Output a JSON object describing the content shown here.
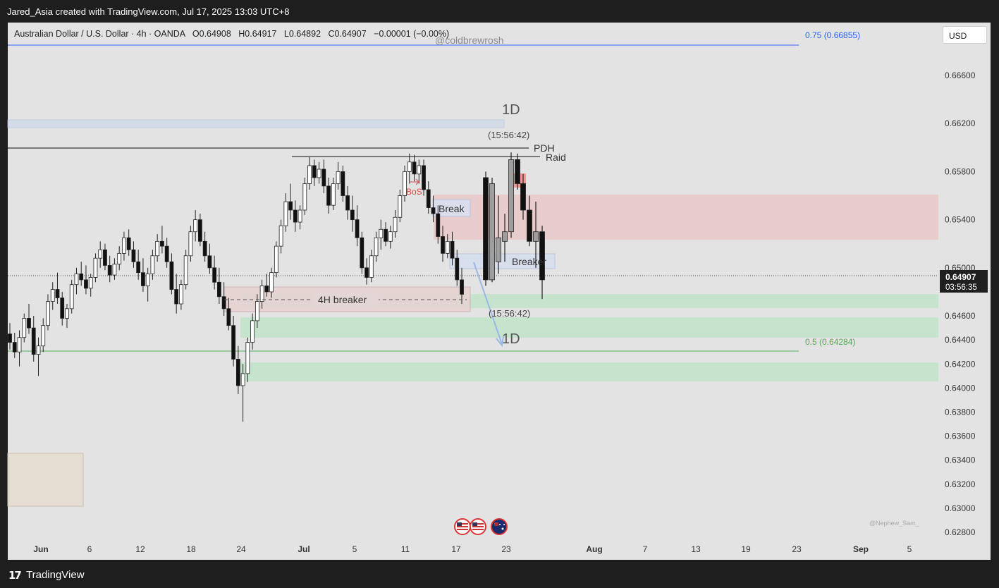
{
  "header": {
    "title": "Jared_Asia created with TradingView.com, Jul 17, 2025 13:03 UTC+8"
  },
  "legend": {
    "symbol": "Australian Dollar / U.S. Dollar · 4h · OANDA",
    "open": "O0.64908",
    "high": "H0.64917",
    "low": "L0.64892",
    "close": "C0.64907",
    "change": "−0.00001 (−0.00%)"
  },
  "currency_button": "USD",
  "footer": {
    "logo_text": "TradingView"
  },
  "colors": {
    "background": "#e3e3e3",
    "frame": "#1e1e1e",
    "blue_line": "#2962ff",
    "green_line": "#4caf50",
    "red_zone": "#f5c6c6",
    "green_zone": "#c8e6c9",
    "candle_up": "#ffffff",
    "candle_down": "#000000"
  },
  "annotations": {
    "watermark": "@coldbrewrosh",
    "tf_top": "1D",
    "tf_bottom": "1D",
    "timer_top": "(15:56:42)",
    "timer_bottom": "(15:56:42)",
    "pdh": "PDH",
    "raid": "Raid",
    "bos": "BoS",
    "break": "Break",
    "breaker": "Breaker",
    "breaker_4h": "4H breaker",
    "fib_075": "0.75 (0.66855)",
    "fib_05": "0.5 (0.64284)",
    "credit": "@Nephew_Sam_",
    "last_price": "0.64907",
    "countdown": "03:56:35"
  },
  "chart_data": {
    "type": "candlestick",
    "symbol": "AUDUSD",
    "timeframe": "4h",
    "ylim": [
      0.627,
      0.6685
    ],
    "yticks": [
      0.666,
      0.662,
      0.658,
      0.654,
      0.65,
      0.646,
      0.644,
      0.642,
      0.64,
      0.638,
      0.636,
      0.634,
      0.632,
      0.63,
      0.628
    ],
    "ytick_labels": [
      "0.66600",
      "0.66200",
      "0.65800",
      "0.65400",
      "0.65000",
      "0.64600",
      "0.64400",
      "0.64200",
      "0.64000",
      "0.63800",
      "0.63600",
      "0.63400",
      "0.63200",
      "0.63000",
      "0.62800"
    ],
    "xticks": [
      "Jun",
      "6",
      "12",
      "18",
      "24",
      "Jul",
      "5",
      "11",
      "17",
      "23",
      "Aug",
      "7",
      "13",
      "19",
      "23",
      "Sep",
      "5"
    ],
    "candles_4h": [
      [
        0.6445,
        0.6454,
        0.6432,
        0.6438
      ],
      [
        0.6438,
        0.6446,
        0.6425,
        0.643
      ],
      [
        0.643,
        0.6448,
        0.6418,
        0.6442
      ],
      [
        0.6442,
        0.6462,
        0.6438,
        0.6458
      ],
      [
        0.6458,
        0.647,
        0.6445,
        0.645
      ],
      [
        0.645,
        0.646,
        0.6422,
        0.6428
      ],
      [
        0.6428,
        0.6442,
        0.641,
        0.6435
      ],
      [
        0.6435,
        0.6458,
        0.643,
        0.6452
      ],
      [
        0.6452,
        0.6478,
        0.6448,
        0.6472
      ],
      [
        0.6472,
        0.6488,
        0.6465,
        0.6482
      ],
      [
        0.6482,
        0.6496,
        0.647,
        0.6475
      ],
      [
        0.6475,
        0.648,
        0.6452,
        0.6458
      ],
      [
        0.6458,
        0.647,
        0.645,
        0.6466
      ],
      [
        0.6466,
        0.649,
        0.6462,
        0.6486
      ],
      [
        0.6486,
        0.65,
        0.6478,
        0.6495
      ],
      [
        0.6495,
        0.6505,
        0.6485,
        0.649
      ],
      [
        0.649,
        0.6502,
        0.6478,
        0.6483
      ],
      [
        0.6483,
        0.6495,
        0.6476,
        0.6492
      ],
      [
        0.6492,
        0.6512,
        0.6488,
        0.6508
      ],
      [
        0.6508,
        0.6522,
        0.65,
        0.6515
      ],
      [
        0.6515,
        0.652,
        0.6498,
        0.6502
      ],
      [
        0.6502,
        0.651,
        0.6488,
        0.6494
      ],
      [
        0.6494,
        0.6508,
        0.649,
        0.6503
      ],
      [
        0.6503,
        0.6518,
        0.6498,
        0.6512
      ],
      [
        0.6512,
        0.653,
        0.6506,
        0.6525
      ],
      [
        0.6525,
        0.6532,
        0.651,
        0.6515
      ],
      [
        0.6515,
        0.6522,
        0.65,
        0.6505
      ],
      [
        0.6505,
        0.6515,
        0.649,
        0.6496
      ],
      [
        0.6496,
        0.6508,
        0.648,
        0.6485
      ],
      [
        0.6485,
        0.65,
        0.6472,
        0.6495
      ],
      [
        0.6495,
        0.6515,
        0.649,
        0.651
      ],
      [
        0.651,
        0.6528,
        0.6505,
        0.6522
      ],
      [
        0.6522,
        0.6535,
        0.6512,
        0.6518
      ],
      [
        0.6518,
        0.6525,
        0.65,
        0.6505
      ],
      [
        0.6505,
        0.6512,
        0.6478,
        0.6482
      ],
      [
        0.6482,
        0.6495,
        0.6462,
        0.647
      ],
      [
        0.647,
        0.649,
        0.6465,
        0.6486
      ],
      [
        0.6486,
        0.6515,
        0.6482,
        0.651
      ],
      [
        0.651,
        0.6535,
        0.6505,
        0.653
      ],
      [
        0.653,
        0.6548,
        0.6522,
        0.654
      ],
      [
        0.654,
        0.6545,
        0.6518,
        0.6522
      ],
      [
        0.6522,
        0.653,
        0.6505,
        0.651
      ],
      [
        0.651,
        0.652,
        0.6495,
        0.65
      ],
      [
        0.65,
        0.651,
        0.6482,
        0.6488
      ],
      [
        0.6488,
        0.65,
        0.647,
        0.6476
      ],
      [
        0.6476,
        0.6488,
        0.646,
        0.6466
      ],
      [
        0.6466,
        0.6475,
        0.6448,
        0.6452
      ],
      [
        0.6452,
        0.646,
        0.6418,
        0.6424
      ],
      [
        0.6424,
        0.6435,
        0.6395,
        0.6402
      ],
      [
        0.6402,
        0.642,
        0.6372,
        0.6412
      ],
      [
        0.6412,
        0.6442,
        0.6405,
        0.6438
      ],
      [
        0.6438,
        0.6462,
        0.6432,
        0.6456
      ],
      [
        0.6456,
        0.6478,
        0.645,
        0.6472
      ],
      [
        0.6472,
        0.649,
        0.6466,
        0.6485
      ],
      [
        0.6485,
        0.6495,
        0.6476,
        0.648
      ],
      [
        0.648,
        0.65,
        0.6475,
        0.6496
      ],
      [
        0.6496,
        0.6522,
        0.6492,
        0.6518
      ],
      [
        0.6518,
        0.654,
        0.6512,
        0.6535
      ],
      [
        0.6535,
        0.6562,
        0.653,
        0.6555
      ],
      [
        0.6555,
        0.657,
        0.654,
        0.6548
      ],
      [
        0.6548,
        0.6556,
        0.653,
        0.6538
      ],
      [
        0.6538,
        0.6552,
        0.6532,
        0.6548
      ],
      [
        0.6548,
        0.6575,
        0.6544,
        0.657
      ],
      [
        0.657,
        0.6592,
        0.6565,
        0.6585
      ],
      [
        0.6585,
        0.659,
        0.6568,
        0.6575
      ],
      [
        0.6575,
        0.6588,
        0.657,
        0.6582
      ],
      [
        0.6582,
        0.659,
        0.6562,
        0.6568
      ],
      [
        0.6568,
        0.6575,
        0.6545,
        0.6552
      ],
      [
        0.6552,
        0.6575,
        0.6548,
        0.657
      ],
      [
        0.657,
        0.6588,
        0.6565,
        0.658
      ],
      [
        0.658,
        0.6585,
        0.6555,
        0.656
      ],
      [
        0.656,
        0.6568,
        0.654,
        0.6548
      ],
      [
        0.6548,
        0.656,
        0.653,
        0.654
      ],
      [
        0.654,
        0.6552,
        0.6518,
        0.6525
      ],
      [
        0.6525,
        0.653,
        0.6495,
        0.65
      ],
      [
        0.65,
        0.6508,
        0.6486,
        0.6492
      ],
      [
        0.6492,
        0.6515,
        0.6488,
        0.651
      ],
      [
        0.651,
        0.653,
        0.6505,
        0.6525
      ],
      [
        0.6525,
        0.654,
        0.6515,
        0.6532
      ],
      [
        0.6532,
        0.6538,
        0.6518,
        0.6522
      ],
      [
        0.6522,
        0.6535,
        0.6516,
        0.653
      ],
      [
        0.653,
        0.6548,
        0.6525,
        0.6542
      ],
      [
        0.6542,
        0.6565,
        0.6538,
        0.656
      ],
      [
        0.656,
        0.6585,
        0.6555,
        0.658
      ],
      [
        0.658,
        0.6595,
        0.657,
        0.6588
      ],
      [
        0.6588,
        0.6594,
        0.6572,
        0.6578
      ],
      [
        0.6578,
        0.659,
        0.657,
        0.6585
      ],
      [
        0.6585,
        0.659,
        0.656,
        0.6565
      ],
      [
        0.6565,
        0.6572,
        0.6545,
        0.655
      ],
      [
        0.655,
        0.656,
        0.6538,
        0.6545
      ],
      [
        0.6545,
        0.6552,
        0.652,
        0.6526
      ],
      [
        0.6526,
        0.6535,
        0.6505,
        0.6512
      ],
      [
        0.6512,
        0.6528,
        0.6508,
        0.6522
      ],
      [
        0.6522,
        0.653,
        0.6502,
        0.6508
      ],
      [
        0.6508,
        0.6515,
        0.6485,
        0.649
      ],
      [
        0.649,
        0.65,
        0.647,
        0.6478
      ]
    ],
    "candles_1d": [
      [
        0.6575,
        0.658,
        0.6485,
        0.649
      ],
      [
        0.649,
        0.6575,
        0.6488,
        0.657
      ],
      [
        0.6505,
        0.656,
        0.6495,
        0.6525
      ],
      [
        0.6522,
        0.6545,
        0.6505,
        0.653
      ],
      [
        0.653,
        0.6596,
        0.6525,
        0.659
      ],
      [
        0.659,
        0.6595,
        0.6565,
        0.657
      ],
      [
        0.657,
        0.6578,
        0.654,
        0.6548
      ],
      [
        0.6548,
        0.656,
        0.6518,
        0.6522
      ],
      [
        0.6522,
        0.6555,
        0.65,
        0.653
      ],
      [
        0.653,
        0.6535,
        0.6474,
        0.649
      ]
    ],
    "horizontal_levels": [
      {
        "label": "PDH",
        "price": 0.6599
      },
      {
        "label": "Raid",
        "price": 0.6592
      },
      {
        "label": "0.75 (0.66855)",
        "price": 0.66855
      },
      {
        "label": "0.5 (0.64284)",
        "price": 0.64284
      }
    ],
    "zones": [
      {
        "label": "",
        "type": "supply",
        "top": 0.6558,
        "bottom": 0.652
      },
      {
        "label": "",
        "type": "demand",
        "top": 0.6478,
        "bottom": 0.6466
      },
      {
        "label": "",
        "type": "demand",
        "top": 0.6458,
        "bottom": 0.6441
      },
      {
        "label": "",
        "type": "demand",
        "top": 0.6419,
        "bottom": 0.6403
      },
      {
        "label": "4H breaker",
        "type": "breaker",
        "top": 0.6481,
        "bottom": 0.646
      },
      {
        "label": "Breaker",
        "type": "breaker",
        "top": 0.6508,
        "bottom": 0.6496
      }
    ],
    "last_price": 0.64907
  }
}
